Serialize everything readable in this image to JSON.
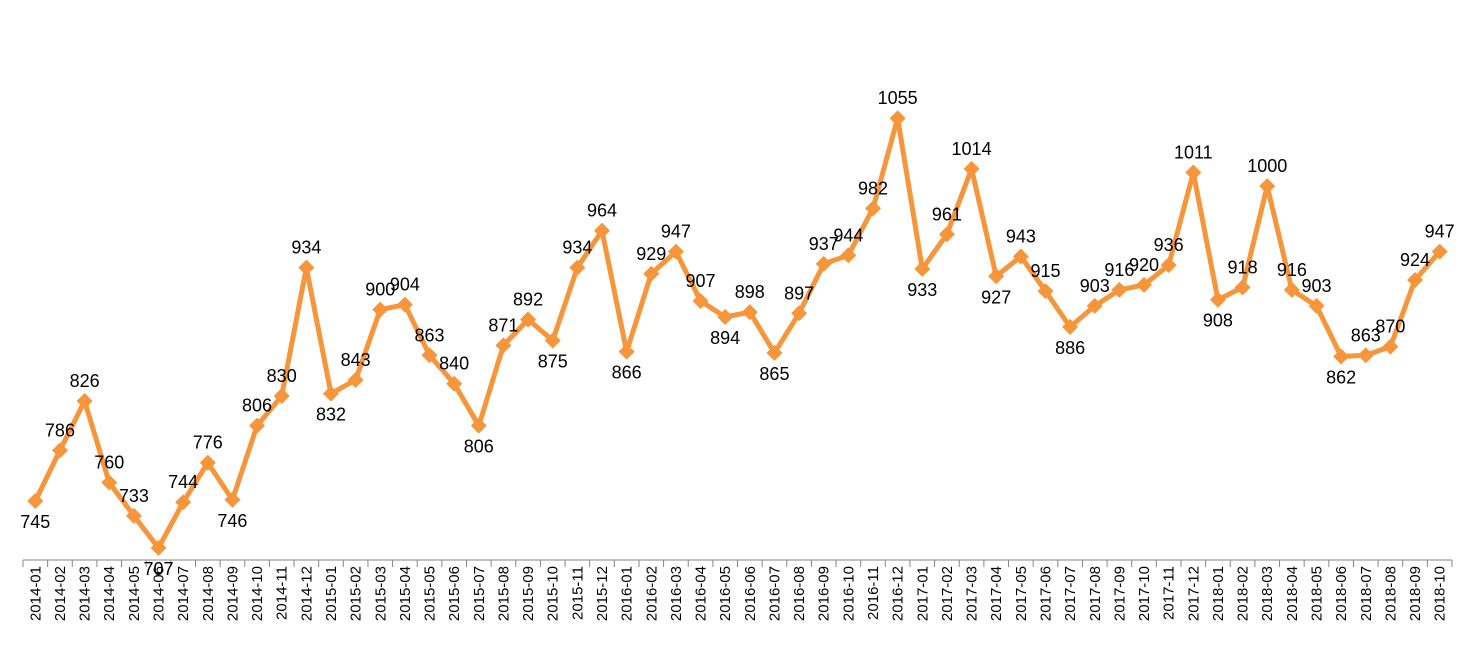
{
  "chart_data": {
    "type": "line",
    "title": "",
    "xlabel": "",
    "ylabel": "",
    "ylim": [
      700,
      1070
    ],
    "grid": false,
    "legend": "none",
    "line_color": "#F7953A",
    "marker": "diamond",
    "categories": [
      "2014-01",
      "2014-02",
      "2014-03",
      "2014-04",
      "2014-05",
      "2014-06",
      "2014-07",
      "2014-08",
      "2014-09",
      "2014-10",
      "2014-11",
      "2014-12",
      "2015-01",
      "2015-02",
      "2015-03",
      "2015-04",
      "2015-05",
      "2015-06",
      "2015-07",
      "2015-08",
      "2015-09",
      "2015-10",
      "2015-11",
      "2015-12",
      "2016-01",
      "2016-02",
      "2016-03",
      "2016-04",
      "2016-05",
      "2016-06",
      "2016-07",
      "2016-08",
      "2016-09",
      "2016-10",
      "2016-11",
      "2016-12",
      "2017-01",
      "2017-02",
      "2017-03",
      "2017-04",
      "2017-05",
      "2017-06",
      "2017-07",
      "2017-08",
      "2017-09",
      "2017-10",
      "2017-11",
      "2017-12",
      "2018-01",
      "2018-02",
      "2018-03",
      "2018-04",
      "2018-05",
      "2018-06",
      "2018-07",
      "2018-08",
      "2018-09",
      "2018-10"
    ],
    "values": [
      745,
      786,
      826,
      760,
      733,
      707,
      744,
      776,
      746,
      806,
      830,
      934,
      832,
      843,
      900,
      904,
      863,
      840,
      806,
      871,
      892,
      875,
      934,
      964,
      866,
      929,
      947,
      907,
      894,
      898,
      865,
      897,
      937,
      944,
      982,
      1055,
      933,
      961,
      1014,
      927,
      943,
      915,
      886,
      903,
      916,
      920,
      936,
      1011,
      908,
      918,
      1000,
      916,
      903,
      862,
      863,
      870,
      924,
      947
    ]
  }
}
